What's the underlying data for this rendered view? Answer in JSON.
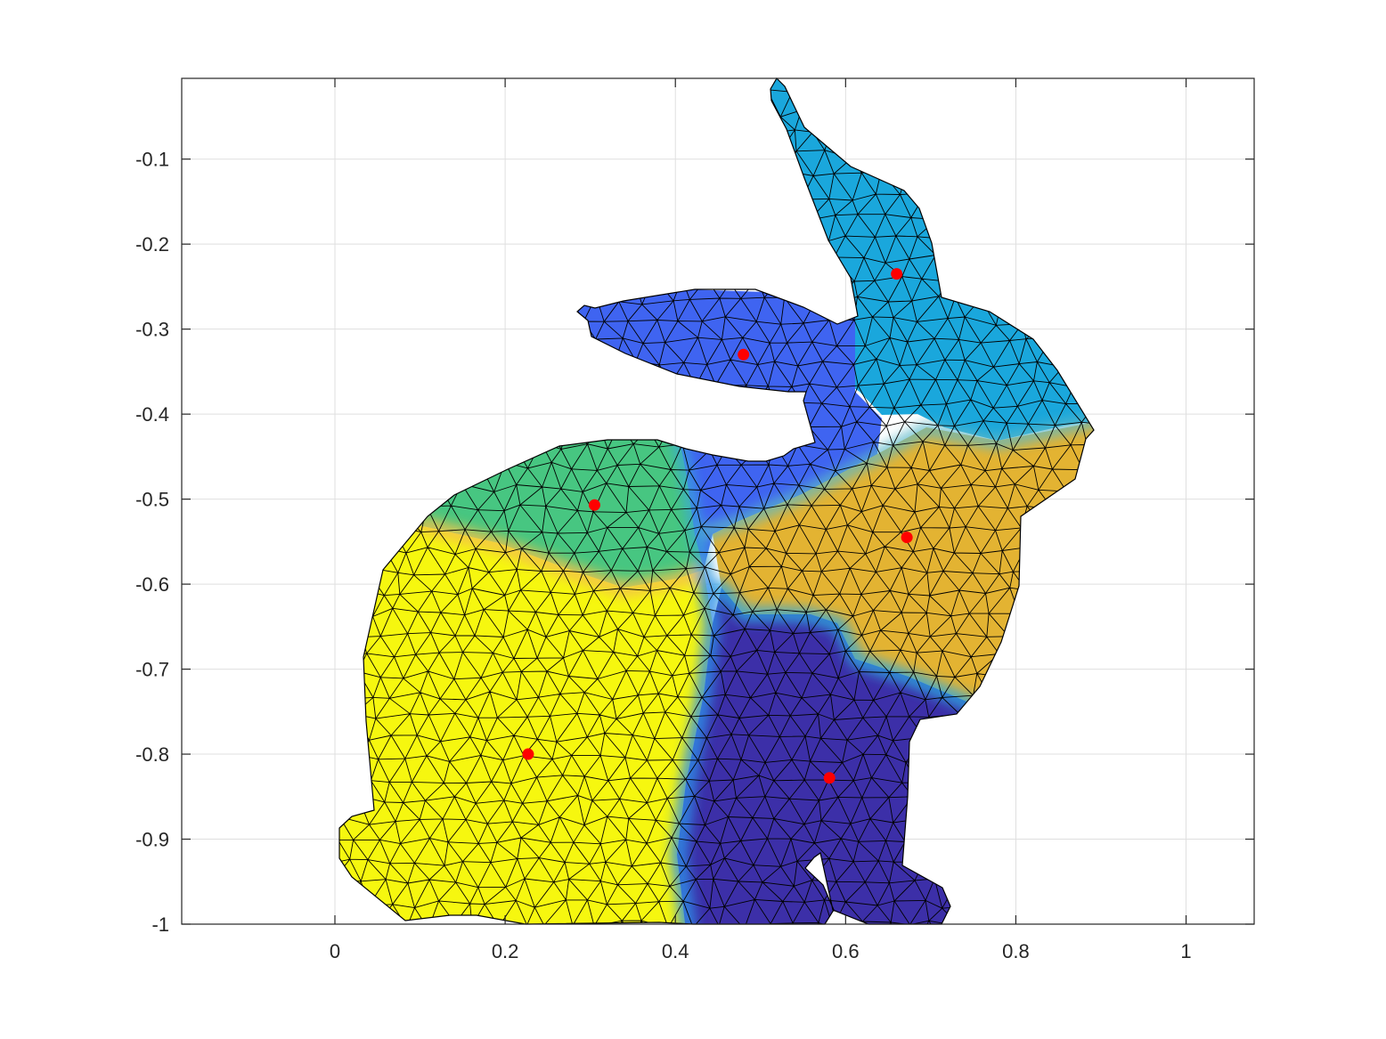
{
  "chart_data": {
    "type": "scatter",
    "title": "",
    "xlabel": "",
    "ylabel": "",
    "xlim": [
      -0.18,
      1.08
    ],
    "ylim": [
      -1.0,
      -0.005
    ],
    "xticks": [
      0,
      0.2,
      0.4,
      0.6,
      0.8,
      1
    ],
    "xtick_labels": [
      "0",
      "0.2",
      "0.4",
      "0.6",
      "0.8",
      "1"
    ],
    "yticks": [
      -0.1,
      -0.2,
      -0.3,
      -0.4,
      -0.5,
      -0.6,
      -0.7,
      -0.8,
      -0.9,
      -1
    ],
    "ytick_labels": [
      "-0.1",
      "-0.2",
      "-0.3",
      "-0.4",
      "-0.5",
      "-0.6",
      "-0.7",
      "-0.8",
      "-0.9",
      "-1"
    ],
    "grid": true,
    "legend": "none",
    "marker_color": "#ff0000",
    "edge_color": "#000000",
    "points": [
      {
        "x": 0.66,
        "y": -0.235
      },
      {
        "x": 0.48,
        "y": -0.33
      },
      {
        "x": 0.305,
        "y": -0.507
      },
      {
        "x": 0.672,
        "y": -0.545
      },
      {
        "x": 0.227,
        "y": -0.8
      },
      {
        "x": 0.581,
        "y": -0.828
      }
    ],
    "regions": [
      {
        "color": "#1aa7dc"
      },
      {
        "color": "#3f64f1"
      },
      {
        "color": "#47c681"
      },
      {
        "color": "#e3b332"
      },
      {
        "color": "#f6f70f"
      },
      {
        "color": "#3c2fa8"
      }
    ]
  }
}
